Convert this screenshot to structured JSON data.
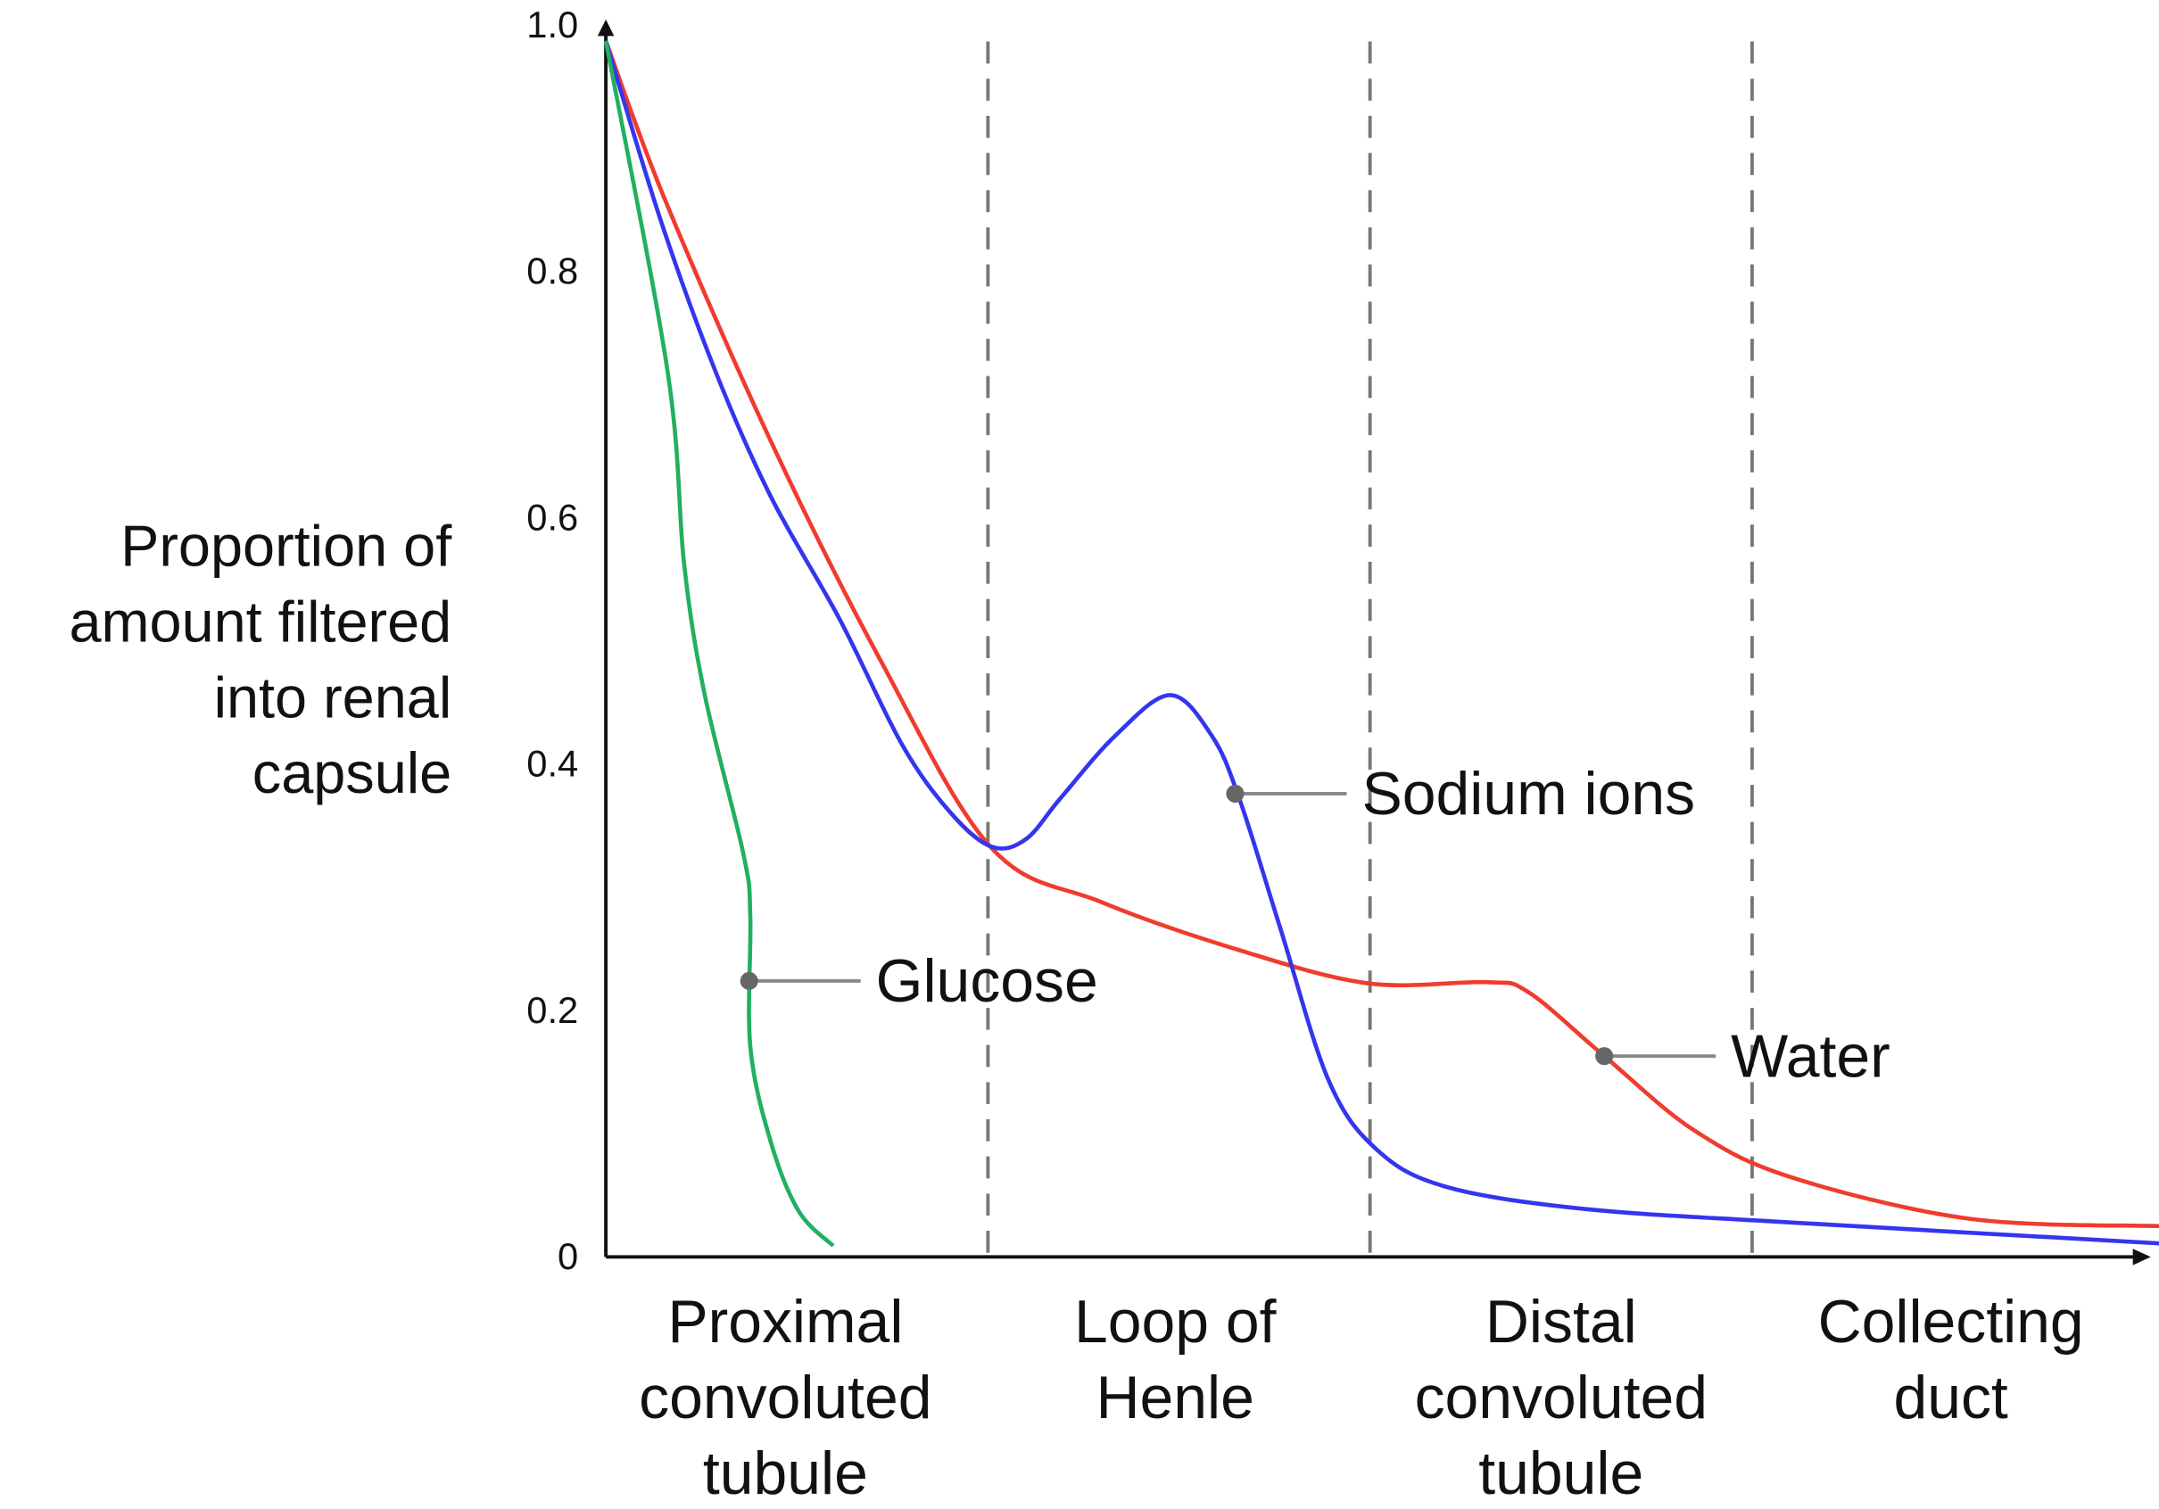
{
  "chart_data": {
    "type": "line",
    "title": "",
    "xlabel": "",
    "ylabel_lines": [
      "Proportion of",
      "amount filtered",
      "into renal",
      "capsule"
    ],
    "ylim": [
      0,
      1.0
    ],
    "xlim": [
      0,
      4.07
    ],
    "yticks": [
      {
        "value": 0,
        "label": "0"
      },
      {
        "value": 0.2,
        "label": "0.2"
      },
      {
        "value": 0.4,
        "label": "0.4"
      },
      {
        "value": 0.6,
        "label": "0.6"
      },
      {
        "value": 0.8,
        "label": "0.8"
      },
      {
        "value": 1.0,
        "label": "1.0"
      }
    ],
    "segment_boundaries": [
      1,
      2,
      3
    ],
    "categories": [
      {
        "center": 0.47,
        "lines": [
          "Proximal",
          "convoluted",
          "tubule"
        ]
      },
      {
        "center": 1.49,
        "lines": [
          "Loop of",
          "Henle"
        ]
      },
      {
        "center": 2.5,
        "lines": [
          "Distal",
          "convoluted",
          "tubule"
        ]
      },
      {
        "center": 3.52,
        "lines": [
          "Collecting",
          "duct"
        ]
      }
    ],
    "grid": false,
    "series": [
      {
        "name": "Water",
        "color": "#f03c2e",
        "label_point": [
          2.613,
          0.163
        ],
        "points": [
          [
            0,
            0.987
          ],
          [
            0.155,
            0.858
          ],
          [
            0.432,
            0.662
          ],
          [
            0.721,
            0.483
          ],
          [
            1.009,
            0.332
          ],
          [
            1.297,
            0.288
          ],
          [
            1.658,
            0.249
          ],
          [
            1.996,
            0.222
          ],
          [
            2.306,
            0.223
          ],
          [
            2.414,
            0.215
          ],
          [
            2.613,
            0.163
          ],
          [
            2.847,
            0.103
          ],
          [
            3.099,
            0.065
          ],
          [
            3.568,
            0.031
          ],
          [
            4.065,
            0.025
          ]
        ]
      },
      {
        "name": "Sodium ions",
        "color": "#3535ee",
        "label_point": [
          1.647,
          0.376
        ],
        "points": [
          [
            0,
            0.987
          ],
          [
            0.144,
            0.841
          ],
          [
            0.288,
            0.718
          ],
          [
            0.432,
            0.617
          ],
          [
            0.613,
            0.517
          ],
          [
            0.775,
            0.416
          ],
          [
            0.901,
            0.361
          ],
          [
            1.009,
            0.333
          ],
          [
            1.099,
            0.339
          ],
          [
            1.189,
            0.372
          ],
          [
            1.333,
            0.423
          ],
          [
            1.477,
            0.456
          ],
          [
            1.586,
            0.423
          ],
          [
            1.658,
            0.372
          ],
          [
            1.766,
            0.266
          ],
          [
            1.892,
            0.143
          ],
          [
            2.018,
            0.087
          ],
          [
            2.198,
            0.057
          ],
          [
            2.559,
            0.039
          ],
          [
            3.099,
            0.028
          ],
          [
            4.065,
            0.011
          ]
        ]
      },
      {
        "name": "Glucose",
        "color": "#22b060",
        "label_point": [
          0.375,
          0.224
        ],
        "points": [
          [
            0,
            0.987
          ],
          [
            0.162,
            0.718
          ],
          [
            0.205,
            0.562
          ],
          [
            0.259,
            0.456
          ],
          [
            0.36,
            0.327
          ],
          [
            0.378,
            0.277
          ],
          [
            0.378,
            0.171
          ],
          [
            0.432,
            0.093
          ],
          [
            0.505,
            0.037
          ],
          [
            0.595,
            0.009
          ]
        ]
      }
    ]
  }
}
